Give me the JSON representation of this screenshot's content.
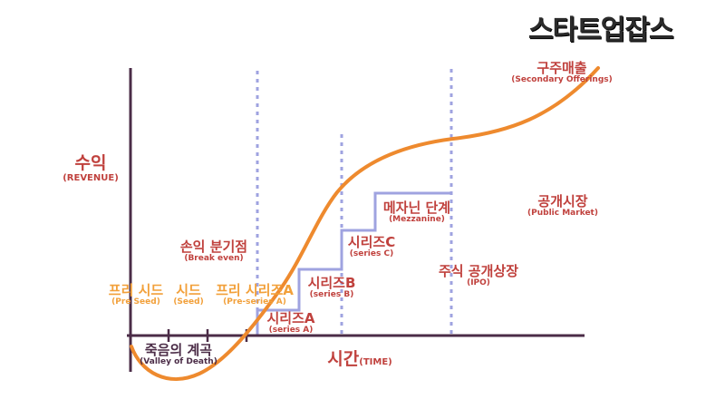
{
  "logo": {
    "text": "스타트업잡스"
  },
  "axes": {
    "y": {
      "label_ko": "수익",
      "label_en": "(REVENUE)"
    },
    "x": {
      "label_ko": "시간",
      "label_en": "(TIME)"
    }
  },
  "labels": {
    "death_valley": {
      "ko": "죽음의 계곡",
      "en": "(Valley of Death)"
    },
    "pre_seed": {
      "ko": "프리 시드",
      "en": "(Pre Seed)"
    },
    "seed": {
      "ko": "시드",
      "en": "(Seed)"
    },
    "pre_series_a": {
      "ko": "프리 시리즈A",
      "en": "(Pre-series A)"
    },
    "break_even": {
      "ko": "손익 분기점",
      "en": "(Break even)"
    },
    "series_a": {
      "ko": "시리즈A",
      "en": "(series A)"
    },
    "series_b": {
      "ko": "시리즈B",
      "en": "(series B)"
    },
    "series_c": {
      "ko": "시리즈C",
      "en": "(series C)"
    },
    "mezzanine": {
      "ko": "메자닌 단계",
      "en": "(Mezzanine)"
    },
    "ipo": {
      "ko": "주식 공개상장",
      "en": "(IPO)"
    },
    "public_market": {
      "ko": "공개시장",
      "en": "(Public Market)"
    },
    "secondary": {
      "ko": "구주매출",
      "en": "(Secondary Offerings)"
    }
  },
  "colors": {
    "axis": "#4b2c47",
    "curve": "#ee8a2e",
    "steps": "#9fa3e0",
    "dotted": "#9fa3e0",
    "label_red": "#c0413d",
    "label_orange": "#f2a03a"
  }
}
